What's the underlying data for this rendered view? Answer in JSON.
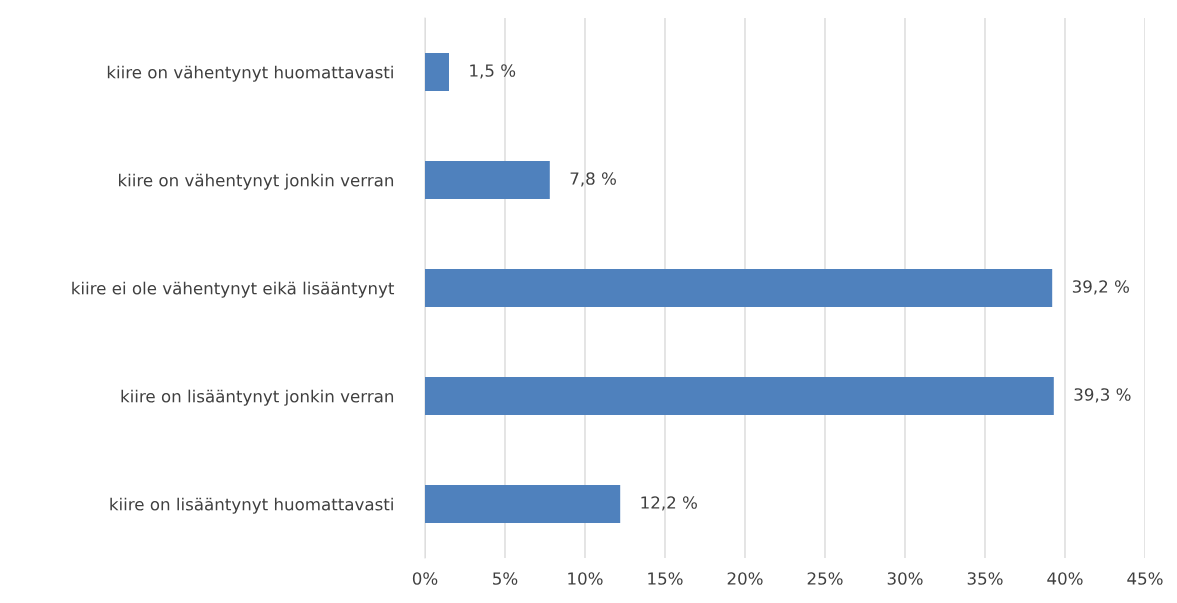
{
  "chart_data": {
    "type": "bar",
    "orientation": "horizontal",
    "categories": [
      "kiire on vähentynyt huomattavasti",
      "kiire on vähentynyt jonkin verran",
      "kiire ei ole vähentynyt eikä lisääntynyt",
      "kiire on lisääntynyt jonkin verran",
      "kiire on lisääntynyt huomattavasti"
    ],
    "values": [
      1.5,
      7.8,
      39.2,
      39.3,
      12.2
    ],
    "value_labels": [
      "1,5 %",
      "7,8 %",
      "39,2 %",
      "39,3 %",
      "12,2 %"
    ],
    "color": "#4f81bd",
    "xlim": [
      0,
      45
    ],
    "xticks": [
      {
        "value": 0,
        "label": "0%"
      },
      {
        "value": 5,
        "label": "5%"
      },
      {
        "value": 10,
        "label": "10%"
      },
      {
        "value": 15,
        "label": "15%"
      },
      {
        "value": 20,
        "label": "20%"
      },
      {
        "value": 25,
        "label": "25%"
      },
      {
        "value": 30,
        "label": "30%"
      },
      {
        "value": 35,
        "label": "35%"
      },
      {
        "value": 40,
        "label": "40%"
      },
      {
        "value": 45,
        "label": "45%"
      }
    ],
    "grid": "x",
    "legend": false
  }
}
